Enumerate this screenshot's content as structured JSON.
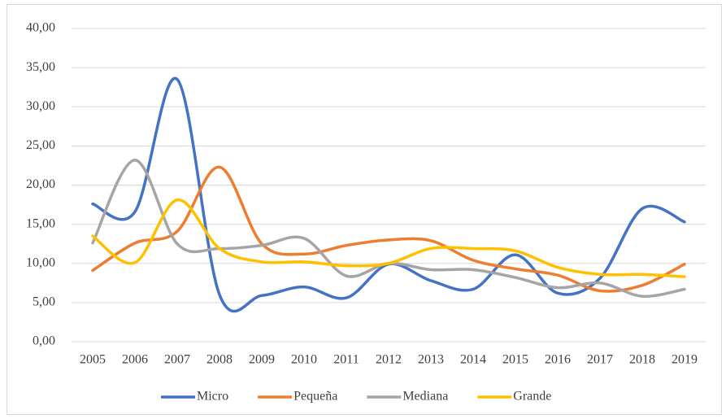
{
  "chart_data": {
    "type": "line",
    "categories": [
      "2005",
      "2006",
      "2007",
      "2008",
      "2009",
      "2010",
      "2011",
      "2012",
      "2013",
      "2014",
      "2015",
      "2016",
      "2017",
      "2018",
      "2019"
    ],
    "series": [
      {
        "name": "Micro",
        "color": "#4472c4",
        "values": [
          17.6,
          16.6,
          33.5,
          6.0,
          5.9,
          7.0,
          5.6,
          9.9,
          7.8,
          6.7,
          11.1,
          6.2,
          8.1,
          17.0,
          15.3
        ]
      },
      {
        "name": "Pequeña",
        "color": "#ed7d31",
        "values": [
          9.1,
          12.6,
          14.1,
          22.3,
          12.5,
          11.2,
          12.3,
          13.0,
          12.9,
          10.4,
          9.3,
          8.5,
          6.5,
          7.2,
          9.9
        ]
      },
      {
        "name": "Mediana",
        "color": "#a5a5a5",
        "values": [
          12.6,
          23.2,
          12.5,
          11.9,
          12.3,
          13.2,
          8.4,
          10.0,
          9.2,
          9.2,
          8.2,
          6.9,
          7.5,
          5.8,
          6.7
        ]
      },
      {
        "name": "Grande",
        "color": "#ffc000",
        "values": [
          13.5,
          10.1,
          18.1,
          11.9,
          10.2,
          10.2,
          9.7,
          10.0,
          11.9,
          11.9,
          11.6,
          9.5,
          8.6,
          8.6,
          8.3
        ]
      }
    ],
    "ylim": [
      0,
      40
    ],
    "yticks": [
      {
        "value": 0,
        "label": "0,00"
      },
      {
        "value": 5,
        "label": "5,00"
      },
      {
        "value": 10,
        "label": "10,00"
      },
      {
        "value": 15,
        "label": "15,00"
      },
      {
        "value": 20,
        "label": "20,00"
      },
      {
        "value": 25,
        "label": "25,00"
      },
      {
        "value": 30,
        "label": "30,00"
      },
      {
        "value": 35,
        "label": "35,00"
      },
      {
        "value": 40,
        "label": "40,00"
      }
    ],
    "grid": true,
    "legend": "bottom",
    "smooth": true
  }
}
